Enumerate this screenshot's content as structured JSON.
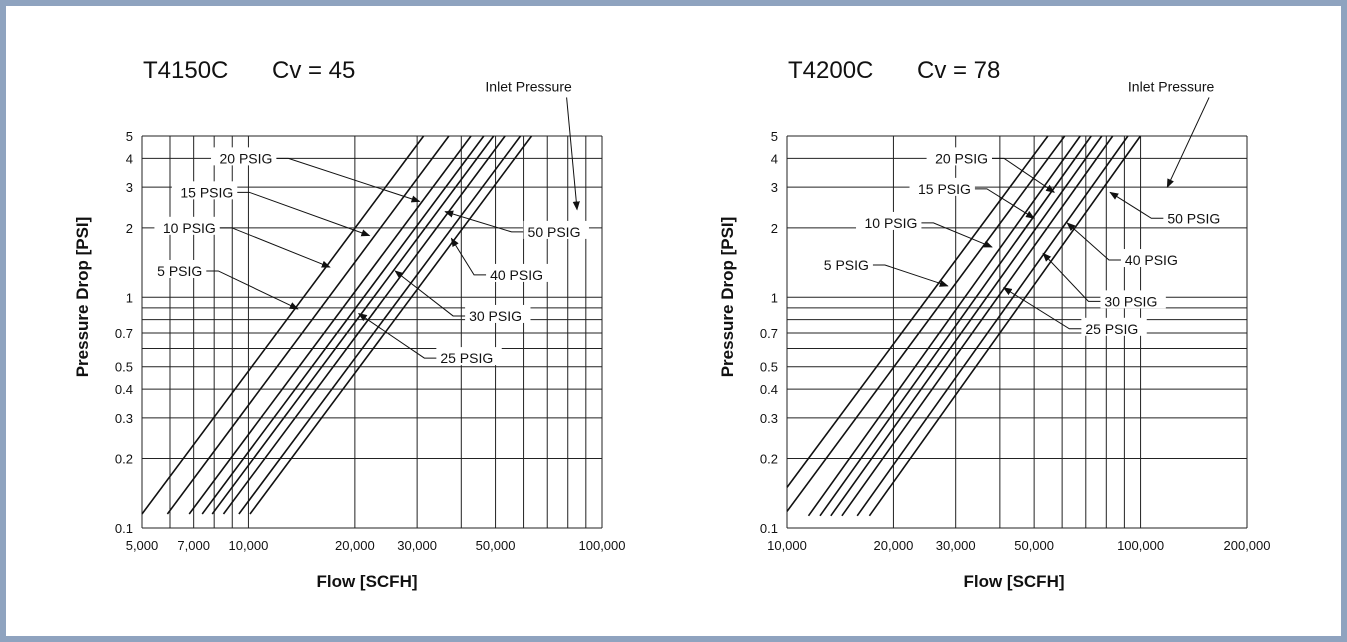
{
  "chart_data": [
    {
      "type": "line",
      "title": "T4150C",
      "subtitle": "Cv = 45",
      "xlabel": "Flow [SCFH]",
      "ylabel": "Pressure Drop [PSI]",
      "x_scale": "log",
      "y_scale": "log",
      "xlim": [
        5000,
        100000
      ],
      "ylim": [
        0.1,
        5
      ],
      "x_ticks": [
        5000,
        7000,
        10000,
        20000,
        30000,
        50000,
        100000
      ],
      "x_tick_labels": [
        "5,000",
        "7,000",
        "10,000",
        "20,000",
        "30,000",
        "50,000",
        "100,000"
      ],
      "y_ticks": [
        0.1,
        0.2,
        0.3,
        0.4,
        0.5,
        0.7,
        1,
        2,
        3,
        4,
        5
      ],
      "y_tick_labels": [
        "0.1",
        "0.2",
        "0.3",
        "0.4",
        "0.5",
        "0.7",
        "1",
        "2",
        "3",
        "4",
        "5"
      ],
      "grid": true,
      "annotation": "Inlet Pressure",
      "series": [
        {
          "name": "5 PSIG",
          "x": [
            5000,
            31300
          ],
          "y": [
            0.115,
            5
          ]
        },
        {
          "name": "10 PSIG",
          "x": [
            5900,
            36900
          ],
          "y": [
            0.115,
            5
          ]
        },
        {
          "name": "15 PSIG",
          "x": [
            6800,
            42600
          ],
          "y": [
            0.115,
            5
          ]
        },
        {
          "name": "20 PSIG",
          "x": [
            7400,
            46300
          ],
          "y": [
            0.115,
            5
          ]
        },
        {
          "name": "25 PSIG",
          "x": [
            7900,
            49400
          ],
          "y": [
            0.115,
            5
          ]
        },
        {
          "name": "30 PSIG",
          "x": [
            8500,
            53200
          ],
          "y": [
            0.115,
            5
          ]
        },
        {
          "name": "40 PSIG",
          "x": [
            9400,
            58800
          ],
          "y": [
            0.115,
            5
          ]
        },
        {
          "name": "50 PSIG",
          "x": [
            10100,
            63200
          ],
          "y": [
            0.115,
            5
          ]
        }
      ],
      "labels": [
        {
          "series": "20 PSIG",
          "tx": 12000,
          "ty": 4.0,
          "ax": 30500,
          "ay": 2.6,
          "anchor": "end"
        },
        {
          "series": "15 PSIG",
          "tx": 9300,
          "ty": 2.85,
          "ax": 22000,
          "ay": 1.85,
          "anchor": "end"
        },
        {
          "series": "10 PSIG",
          "tx": 8300,
          "ty": 2.0,
          "ax": 17000,
          "ay": 1.35,
          "anchor": "end"
        },
        {
          "series": "5 PSIG",
          "tx": 7600,
          "ty": 1.3,
          "ax": 13800,
          "ay": 0.89,
          "anchor": "end"
        },
        {
          "series": "50 PSIG",
          "tx": 60000,
          "ty": 1.92,
          "ax": 36000,
          "ay": 2.35,
          "anchor": "start"
        },
        {
          "series": "40 PSIG",
          "tx": 47000,
          "ty": 1.25,
          "ax": 37500,
          "ay": 1.8,
          "anchor": "start"
        },
        {
          "series": "30 PSIG",
          "tx": 41000,
          "ty": 0.83,
          "ax": 26000,
          "ay": 1.3,
          "anchor": "start"
        },
        {
          "series": "25 PSIG",
          "tx": 34000,
          "ty": 0.545,
          "ax": 20500,
          "ay": 0.85,
          "anchor": "start"
        }
      ],
      "annotation_pos": {
        "tx": 62000,
        "ty": 7.8,
        "ax": 85000,
        "ay": 2.4
      }
    },
    {
      "type": "line",
      "title": "T4200C",
      "subtitle": "Cv = 78",
      "xlabel": "Flow [SCFH]",
      "ylabel": "Pressure Drop [PSI]",
      "x_scale": "log",
      "y_scale": "log",
      "xlim": [
        10000,
        200000
      ],
      "ylim": [
        0.1,
        5
      ],
      "x_ticks": [
        10000,
        20000,
        30000,
        50000,
        100000,
        200000
      ],
      "x_tick_labels": [
        "10,000",
        "20,000",
        "30,000",
        "50,000",
        "100,000",
        "200,000"
      ],
      "y_ticks": [
        0.1,
        0.2,
        0.3,
        0.4,
        0.5,
        0.7,
        1,
        2,
        3,
        4,
        5
      ],
      "y_tick_labels": [
        "0.1",
        "0.2",
        "0.3",
        "0.4",
        "0.5",
        "0.7",
        "1",
        "2",
        "3",
        "4",
        "5"
      ],
      "grid": true,
      "annotation": "Inlet Pressure",
      "series": [
        {
          "name": "5 PSIG",
          "x": [
            10000,
            54700
          ],
          "y": [
            0.15,
            5
          ]
        },
        {
          "name": "10 PSIG",
          "x": [
            10000,
            61000
          ],
          "y": [
            0.118,
            5
          ]
        },
        {
          "name": "15 PSIG",
          "x": [
            11500,
            67500
          ],
          "y": [
            0.113,
            5
          ]
        },
        {
          "name": "20 PSIG",
          "x": [
            12400,
            72500
          ],
          "y": [
            0.113,
            5
          ]
        },
        {
          "name": "25 PSIG",
          "x": [
            13300,
            77700
          ],
          "y": [
            0.113,
            5
          ]
        },
        {
          "name": "30 PSIG",
          "x": [
            14300,
            83400
          ],
          "y": [
            0.113,
            5
          ]
        },
        {
          "name": "40 PSIG",
          "x": [
            15800,
            92100
          ],
          "y": [
            0.113,
            5
          ]
        },
        {
          "name": "50 PSIG",
          "x": [
            17100,
            99900
          ],
          "y": [
            0.113,
            5
          ]
        }
      ],
      "labels": [
        {
          "series": "20 PSIG",
          "tx": 38000,
          "ty": 4.0,
          "ax": 57000,
          "ay": 2.85,
          "anchor": "end"
        },
        {
          "series": "15 PSIG",
          "tx": 34000,
          "ty": 2.95,
          "ax": 50000,
          "ay": 2.2,
          "anchor": "end"
        },
        {
          "series": "10 PSIG",
          "tx": 24000,
          "ty": 2.1,
          "ax": 38000,
          "ay": 1.65,
          "anchor": "end"
        },
        {
          "series": "5 PSIG",
          "tx": 17500,
          "ty": 1.38,
          "ax": 28500,
          "ay": 1.12,
          "anchor": "end"
        },
        {
          "series": "50 PSIG",
          "tx": 116000,
          "ty": 2.2,
          "ax": 82000,
          "ay": 2.85,
          "anchor": "start"
        },
        {
          "series": "40 PSIG",
          "tx": 88000,
          "ty": 1.45,
          "ax": 62000,
          "ay": 2.1,
          "anchor": "start"
        },
        {
          "series": "30 PSIG",
          "tx": 77000,
          "ty": 0.96,
          "ax": 53000,
          "ay": 1.55,
          "anchor": "start"
        },
        {
          "series": "25 PSIG",
          "tx": 68000,
          "ty": 0.73,
          "ax": 41000,
          "ay": 1.1,
          "anchor": "start"
        }
      ],
      "annotation_pos": {
        "tx": 122000,
        "ty": 7.8,
        "ax": 119000,
        "ay": 3.0
      }
    }
  ]
}
